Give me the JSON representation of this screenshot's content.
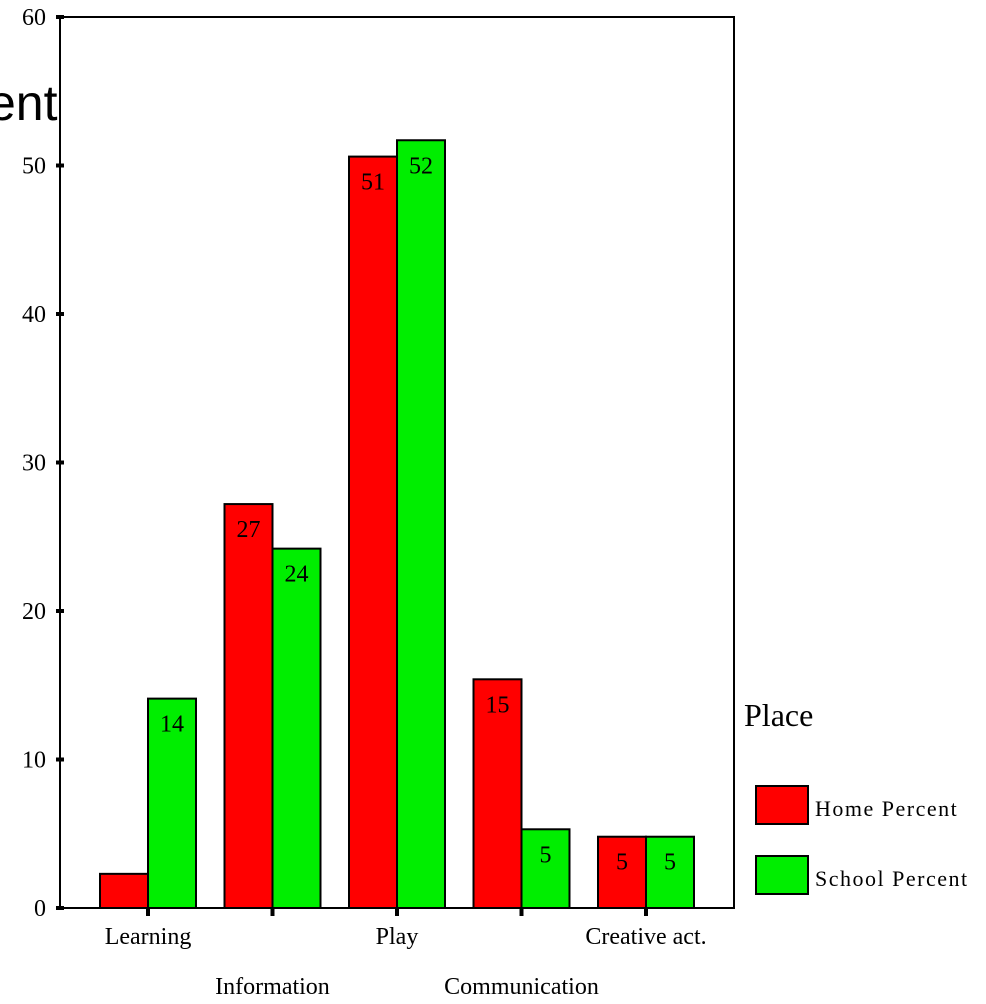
{
  "chart_data": {
    "type": "bar",
    "title_fragment": "ent",
    "categories": [
      "Learning",
      "Information",
      "Play",
      "Communication",
      "Creative act."
    ],
    "ylim": [
      0,
      60
    ],
    "yticks": [
      "0",
      "10",
      "20",
      "30",
      "40",
      "50",
      "60"
    ],
    "grid": false,
    "legend": {
      "title": "Place",
      "position": "right"
    },
    "series": [
      {
        "name": "Home Percent",
        "color": "#ff0000",
        "values": [
          2.3,
          27.2,
          50.6,
          15.4,
          4.8
        ],
        "labels": [
          "",
          "27",
          "51",
          "15",
          "5"
        ]
      },
      {
        "name": "School Percent",
        "color": "#00ee00",
        "values": [
          14.1,
          24.2,
          51.7,
          5.3,
          4.8
        ],
        "labels": [
          "14",
          "24",
          "52",
          "5",
          "5"
        ]
      }
    ]
  }
}
